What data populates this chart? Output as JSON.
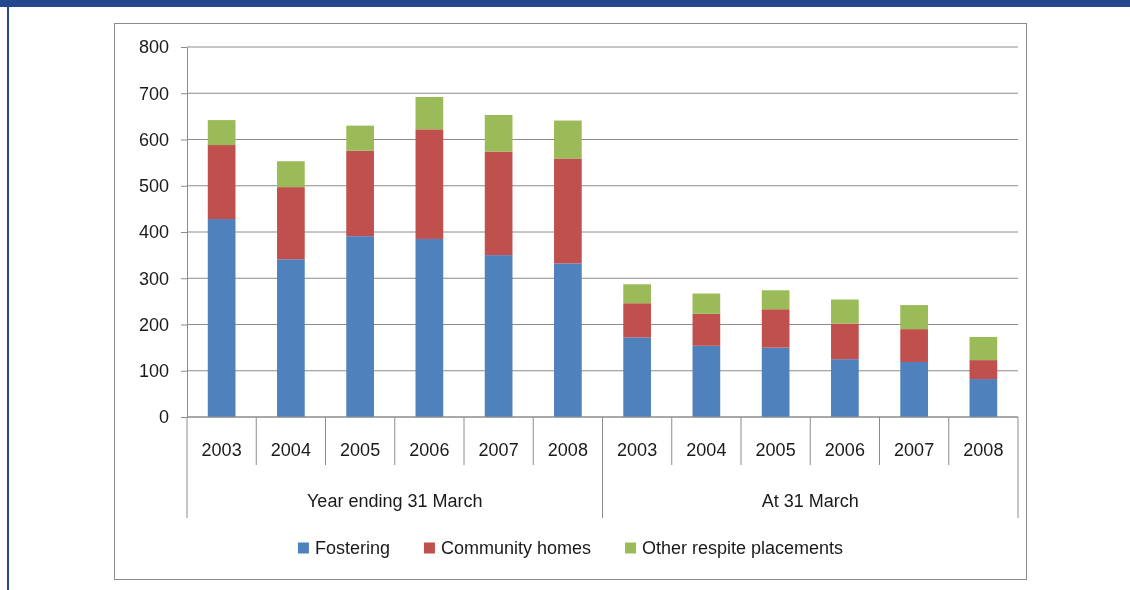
{
  "chart_data": {
    "type": "bar",
    "stacked": true,
    "categories": [
      "2003",
      "2004",
      "2005",
      "2006",
      "2007",
      "2008",
      "2003",
      "2004",
      "2005",
      "2006",
      "2007",
      "2008"
    ],
    "series": [
      {
        "name": "Fostering",
        "color": "#4f81bd",
        "values": [
          428,
          341,
          391,
          385,
          350,
          332,
          172,
          154,
          150,
          125,
          119,
          82
        ]
      },
      {
        "name": "Community homes",
        "color": "#c0504d",
        "values": [
          160,
          156,
          185,
          237,
          224,
          227,
          74,
          69,
          83,
          77,
          71,
          41
        ]
      },
      {
        "name": "Other respite placements",
        "color": "#9bbb59",
        "values": [
          54,
          56,
          54,
          70,
          79,
          82,
          41,
          44,
          41,
          52,
          52,
          50
        ]
      }
    ],
    "ylim": [
      0,
      800
    ],
    "yticks": [
      0,
      100,
      200,
      300,
      400,
      500,
      600,
      700,
      800
    ],
    "grid": "y",
    "legend": "bottom",
    "annotations": [
      "Year ending 31 March",
      "At 31 March"
    ]
  }
}
